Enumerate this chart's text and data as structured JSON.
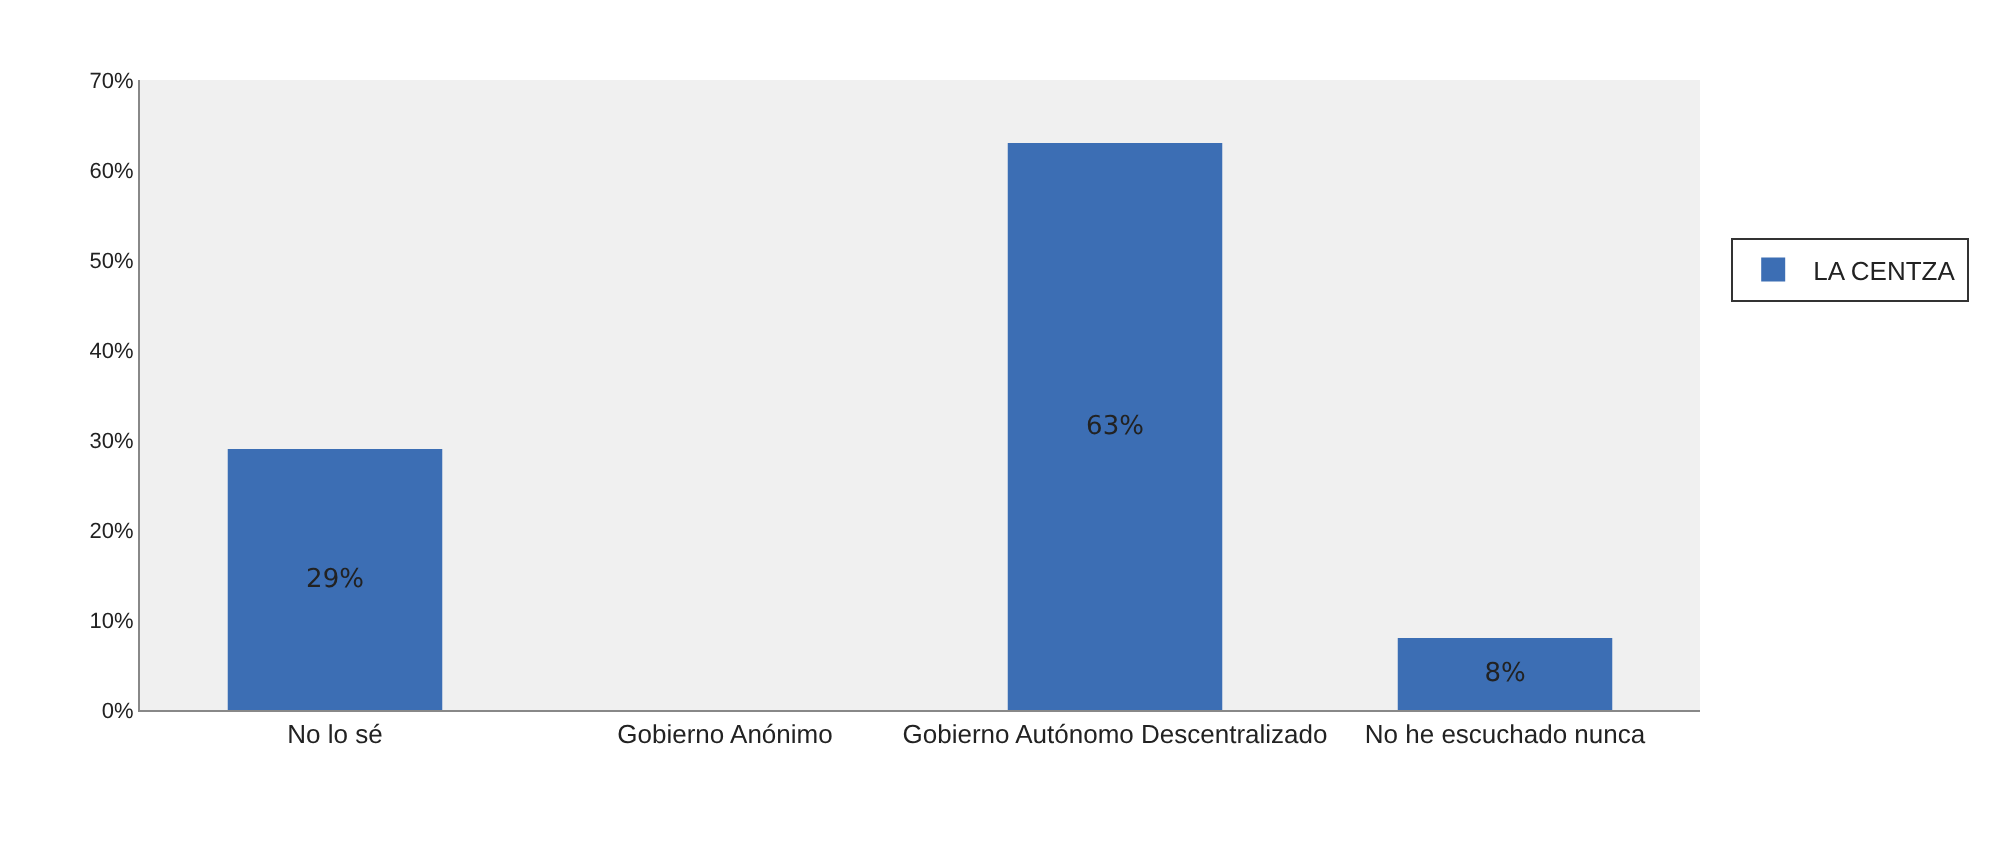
{
  "chart_data": {
    "type": "bar",
    "categories": [
      "No lo sé",
      "Gobierno Anónimo",
      "Gobierno Autónomo Descentralizado",
      "No he escuchado nunca"
    ],
    "series": [
      {
        "name": "LA CENTZA",
        "color": "#3c6eb4",
        "values": [
          29,
          0,
          63,
          8
        ],
        "value_labels": [
          "29%",
          null,
          "63%",
          "8%"
        ]
      }
    ],
    "ylim": [
      0,
      70
    ],
    "yticks": [
      {
        "value": 0,
        "label": "0%"
      },
      {
        "value": 10,
        "label": "10%"
      },
      {
        "value": 20,
        "label": "20%"
      },
      {
        "value": 30,
        "label": "30%"
      },
      {
        "value": 40,
        "label": "40%"
      },
      {
        "value": 50,
        "label": "50%"
      },
      {
        "value": 60,
        "label": "60%"
      },
      {
        "value": 70,
        "label": "70%"
      }
    ],
    "grid": false,
    "legend": "right"
  }
}
